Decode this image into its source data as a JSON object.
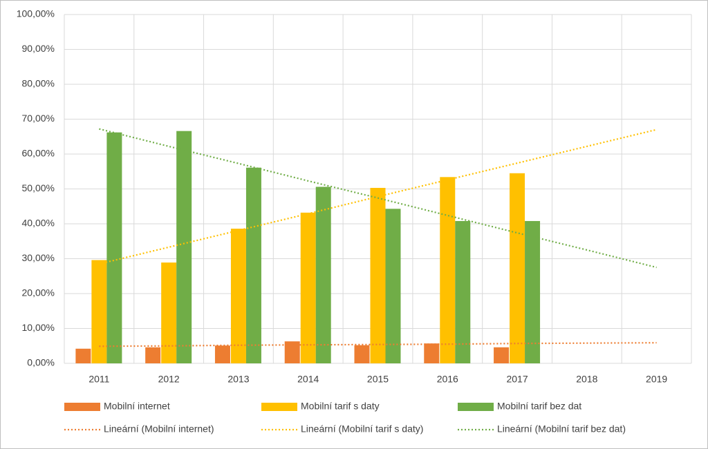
{
  "chart_data": {
    "type": "bar",
    "categories": [
      "2011",
      "2012",
      "2013",
      "2014",
      "2015",
      "2016",
      "2017",
      "2018",
      "2019"
    ],
    "series": [
      {
        "name": "Mobilní internet",
        "color": "#ed7d31",
        "values": [
          4.2,
          4.6,
          5.1,
          6.3,
          5.2,
          5.7,
          4.6,
          null,
          null
        ]
      },
      {
        "name": "Mobilní tarif s daty",
        "color": "#ffc000",
        "values": [
          29.6,
          28.9,
          38.6,
          43.2,
          50.3,
          53.4,
          54.5,
          null,
          null
        ]
      },
      {
        "name": "Mobilní tarif bez dat",
        "color": "#70ad47",
        "values": [
          66.2,
          66.6,
          56.1,
          50.6,
          44.3,
          40.8,
          40.8,
          null,
          null
        ]
      }
    ],
    "trendlines": [
      {
        "name": "Lineární (Mobilní internet)",
        "color": "#ed7d31",
        "values": [
          4.9,
          5.0,
          5.2,
          5.3,
          5.4,
          5.5,
          5.7,
          5.8,
          5.9
        ]
      },
      {
        "name": "Lineární (Mobilní tarif s daty)",
        "color": "#ffc000",
        "values": [
          28.5,
          33.3,
          38.1,
          42.9,
          47.8,
          52.6,
          57.4,
          62.2,
          67.0
        ]
      },
      {
        "name": "Lineární (Mobilní tarif bez dat)",
        "color": "#70ad47",
        "values": [
          67.2,
          62.2,
          57.3,
          52.3,
          47.4,
          42.4,
          37.4,
          32.5,
          27.5
        ]
      }
    ],
    "ylim": [
      0,
      100
    ],
    "yticks": [
      {
        "value": 0,
        "label": "0,00%"
      },
      {
        "value": 10,
        "label": "10,00%"
      },
      {
        "value": 20,
        "label": "20,00%"
      },
      {
        "value": 30,
        "label": "30,00%"
      },
      {
        "value": 40,
        "label": "40,00%"
      },
      {
        "value": 50,
        "label": "50,00%"
      },
      {
        "value": 60,
        "label": "60,00%"
      },
      {
        "value": 70,
        "label": "70,00%"
      },
      {
        "value": 80,
        "label": "80,00%"
      },
      {
        "value": 90,
        "label": "90,00%"
      },
      {
        "value": 100,
        "label": "100,00%"
      }
    ],
    "grid": true
  }
}
